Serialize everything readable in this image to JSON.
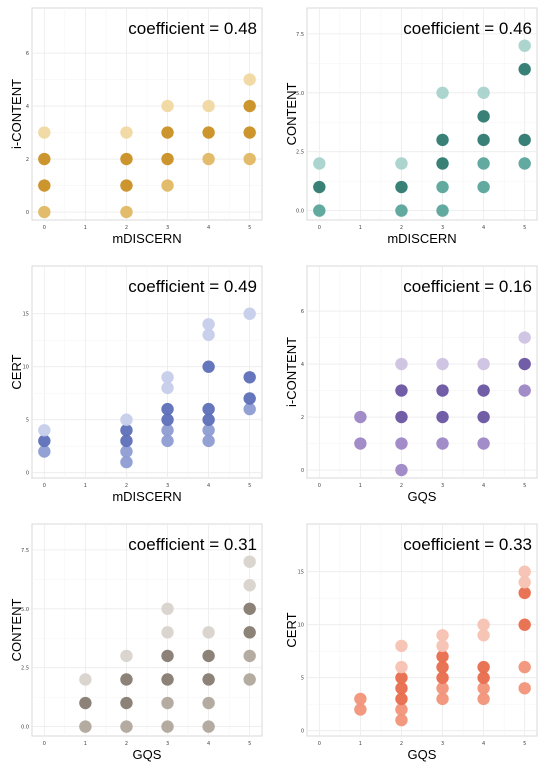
{
  "chart_data": [
    {
      "type": "scatter",
      "coefficient_label": "coefficient = 0.48",
      "xlabel": "mDISCERN",
      "ylabel": "i-CONTENT",
      "xticks": [
        "0",
        "1",
        "2",
        "3",
        "4",
        "5"
      ],
      "yticks": [
        "0",
        "2",
        "4",
        "6"
      ],
      "xlim": [
        -0.3,
        5.3
      ],
      "ylim": [
        -0.3,
        7.7
      ],
      "points": [
        [
          0,
          0
        ],
        [
          0,
          1
        ],
        [
          0,
          2
        ],
        [
          0,
          3
        ],
        [
          2,
          0
        ],
        [
          2,
          1
        ],
        [
          2,
          2
        ],
        [
          2,
          3
        ],
        [
          3,
          1
        ],
        [
          3,
          2
        ],
        [
          3,
          3
        ],
        [
          3,
          4
        ],
        [
          4,
          2
        ],
        [
          4,
          3
        ],
        [
          4,
          4
        ],
        [
          5,
          2
        ],
        [
          5,
          3
        ],
        [
          5,
          4
        ],
        [
          5,
          5
        ]
      ],
      "colors": {
        "light": "#f0d8a0",
        "mid": "#e0b862",
        "dark": "#c98f22"
      }
    },
    {
      "type": "scatter",
      "coefficient_label": "coefficient = 0.46",
      "xlabel": "mDISCERN",
      "ylabel": "CONTENT",
      "xticks": [
        "0",
        "1",
        "2",
        "3",
        "4",
        "5"
      ],
      "yticks": [
        "0.0",
        "2.5",
        "5.0",
        "7.5"
      ],
      "xlim": [
        -0.3,
        5.3
      ],
      "ylim": [
        -0.4,
        8.6
      ],
      "points": [
        [
          0,
          0
        ],
        [
          0,
          1
        ],
        [
          0,
          2
        ],
        [
          2,
          0
        ],
        [
          2,
          1
        ],
        [
          2,
          2
        ],
        [
          3,
          0
        ],
        [
          3,
          1
        ],
        [
          3,
          2
        ],
        [
          3,
          3
        ],
        [
          3,
          5
        ],
        [
          4,
          1
        ],
        [
          4,
          2
        ],
        [
          4,
          3
        ],
        [
          4,
          4
        ],
        [
          4,
          5
        ],
        [
          5,
          2
        ],
        [
          5,
          3
        ],
        [
          5,
          6
        ],
        [
          5,
          7
        ]
      ],
      "colors": {
        "light": "#a9d3cc",
        "mid": "#5aa59b",
        "dark": "#2e7a70"
      }
    },
    {
      "type": "scatter",
      "coefficient_label": "coefficient = 0.49",
      "xlabel": "mDISCERN",
      "ylabel": "CERT",
      "xticks": [
        "0",
        "1",
        "2",
        "3",
        "4",
        "5"
      ],
      "yticks": [
        "0",
        "5",
        "10",
        "15"
      ],
      "xlim": [
        -0.3,
        5.3
      ],
      "ylim": [
        -0.5,
        19.5
      ],
      "points": [
        [
          0,
          2
        ],
        [
          0,
          3
        ],
        [
          0,
          4
        ],
        [
          2,
          1
        ],
        [
          2,
          2
        ],
        [
          2,
          3
        ],
        [
          2,
          4
        ],
        [
          2,
          5
        ],
        [
          3,
          3
        ],
        [
          3,
          4
        ],
        [
          3,
          5
        ],
        [
          3,
          6
        ],
        [
          3,
          8
        ],
        [
          3,
          9
        ],
        [
          4,
          3
        ],
        [
          4,
          4
        ],
        [
          4,
          5
        ],
        [
          4,
          6
        ],
        [
          4,
          10
        ],
        [
          4,
          13
        ],
        [
          4,
          14
        ],
        [
          5,
          6
        ],
        [
          5,
          7
        ],
        [
          5,
          9
        ],
        [
          5,
          15
        ]
      ],
      "colors": {
        "light": "#c5cdeb",
        "mid": "#8d9cd3",
        "dark": "#5d6fb8"
      }
    },
    {
      "type": "scatter",
      "coefficient_label": "coefficient = 0.16",
      "xlabel": "GQS",
      "ylabel": "i-CONTENT",
      "xticks": [
        "0",
        "1",
        "2",
        "3",
        "4",
        "5"
      ],
      "yticks": [
        "0",
        "2",
        "4",
        "6"
      ],
      "xlim": [
        -0.3,
        5.3
      ],
      "ylim": [
        -0.3,
        7.7
      ],
      "points": [
        [
          1,
          1
        ],
        [
          1,
          2
        ],
        [
          2,
          0
        ],
        [
          2,
          1
        ],
        [
          2,
          2
        ],
        [
          2,
          3
        ],
        [
          2,
          4
        ],
        [
          3,
          1
        ],
        [
          3,
          2
        ],
        [
          3,
          3
        ],
        [
          3,
          4
        ],
        [
          4,
          1
        ],
        [
          4,
          2
        ],
        [
          4,
          3
        ],
        [
          4,
          4
        ],
        [
          5,
          3
        ],
        [
          5,
          4
        ],
        [
          5,
          5
        ]
      ],
      "colors": {
        "light": "#cfc2e3",
        "mid": "#9d87c5",
        "dark": "#6a55a2"
      }
    },
    {
      "type": "scatter",
      "coefficient_label": "coefficient = 0.31",
      "xlabel": "GQS",
      "ylabel": "CONTENT",
      "xticks": [
        "0",
        "1",
        "2",
        "3",
        "4",
        "5"
      ],
      "yticks": [
        "0.0",
        "2.5",
        "5.0",
        "7.5"
      ],
      "xlim": [
        -0.3,
        5.3
      ],
      "ylim": [
        -0.4,
        8.6
      ],
      "points": [
        [
          1,
          0
        ],
        [
          1,
          1
        ],
        [
          1,
          2
        ],
        [
          2,
          0
        ],
        [
          2,
          1
        ],
        [
          2,
          2
        ],
        [
          2,
          3
        ],
        [
          3,
          0
        ],
        [
          3,
          1
        ],
        [
          3,
          2
        ],
        [
          3,
          3
        ],
        [
          3,
          4
        ],
        [
          3,
          5
        ],
        [
          4,
          0
        ],
        [
          4,
          1
        ],
        [
          4,
          2
        ],
        [
          4,
          3
        ],
        [
          4,
          4
        ],
        [
          5,
          2
        ],
        [
          5,
          3
        ],
        [
          5,
          4
        ],
        [
          5,
          5
        ],
        [
          5,
          6
        ],
        [
          5,
          7
        ]
      ],
      "colors": {
        "light": "#d9d3cd",
        "mid": "#b0a69c",
        "dark": "#877b70"
      }
    },
    {
      "type": "scatter",
      "coefficient_label": "coefficient = 0.33",
      "xlabel": "GQS",
      "ylabel": "CERT",
      "xticks": [
        "0",
        "1",
        "2",
        "3",
        "4",
        "5"
      ],
      "yticks": [
        "0",
        "5",
        "10",
        "15"
      ],
      "xlim": [
        -0.3,
        5.3
      ],
      "ylim": [
        -0.5,
        19.5
      ],
      "points": [
        [
          1,
          2
        ],
        [
          1,
          3
        ],
        [
          2,
          1
        ],
        [
          2,
          2
        ],
        [
          2,
          3
        ],
        [
          2,
          4
        ],
        [
          2,
          5
        ],
        [
          2,
          6
        ],
        [
          2,
          8
        ],
        [
          3,
          3
        ],
        [
          3,
          4
        ],
        [
          3,
          5
        ],
        [
          3,
          6
        ],
        [
          3,
          7
        ],
        [
          3,
          8
        ],
        [
          3,
          9
        ],
        [
          4,
          3
        ],
        [
          4,
          4
        ],
        [
          4,
          5
        ],
        [
          4,
          6
        ],
        [
          4,
          9
        ],
        [
          4,
          10
        ],
        [
          5,
          4
        ],
        [
          5,
          6
        ],
        [
          5,
          10
        ],
        [
          5,
          13
        ],
        [
          5,
          14
        ],
        [
          5,
          15
        ]
      ],
      "colors": {
        "light": "#f7c2b2",
        "mid": "#f19479",
        "dark": "#e86d4c"
      }
    }
  ]
}
